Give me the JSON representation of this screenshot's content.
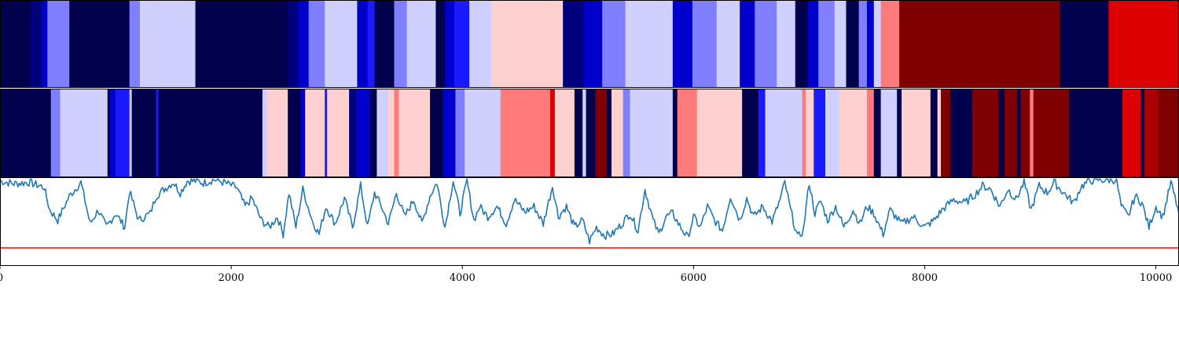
{
  "chart_data": {
    "type": "heatmap",
    "title": "",
    "xlabel": "",
    "ylabel": "",
    "xlim": [
      0,
      10200
    ],
    "grid": false,
    "legend": "none",
    "x_ticks": [
      0,
      2000,
      4000,
      6000,
      8000,
      10000
    ],
    "x_tick_labels": [
      "0",
      "2000",
      "4000",
      "6000",
      "8000",
      "10000"
    ],
    "colors": {
      "navy": "#00004c",
      "dark_blue": "#00007f",
      "blue": "#0000cc",
      "bright_blue": "#1a1aff",
      "medium_blue": "#7f7fff",
      "light_blue": "#d0d0ff",
      "light_pink": "#ffd0d0",
      "salmon": "#ff7a7a",
      "red": "#dd0000",
      "dark_red": "#7f0000",
      "crimson": "#aa0000",
      "line": "#1f77b4",
      "threshold": "#ff0000"
    },
    "strip_top": [
      [
        0,
        260,
        "navy"
      ],
      [
        260,
        360,
        "dark_blue"
      ],
      [
        360,
        410,
        "blue"
      ],
      [
        410,
        600,
        "medium_blue"
      ],
      [
        600,
        1120,
        "navy"
      ],
      [
        1120,
        1210,
        "medium_blue"
      ],
      [
        1210,
        1690,
        "light_blue"
      ],
      [
        1690,
        2490,
        "navy"
      ],
      [
        2490,
        2580,
        "dark_blue"
      ],
      [
        2580,
        2670,
        "blue"
      ],
      [
        2670,
        2810,
        "medium_blue"
      ],
      [
        2810,
        3090,
        "light_blue"
      ],
      [
        3090,
        3180,
        "blue"
      ],
      [
        3180,
        3240,
        "bright_blue"
      ],
      [
        3240,
        3410,
        "navy"
      ],
      [
        3410,
        3520,
        "medium_blue"
      ],
      [
        3520,
        3770,
        "light_blue"
      ],
      [
        3770,
        3850,
        "navy"
      ],
      [
        3850,
        3930,
        "blue"
      ],
      [
        3930,
        4060,
        "bright_blue"
      ],
      [
        4060,
        4250,
        "light_blue"
      ],
      [
        4250,
        4870,
        "light_pink"
      ],
      [
        4870,
        5050,
        "dark_blue"
      ],
      [
        5050,
        5210,
        "blue"
      ],
      [
        5210,
        5410,
        "medium_blue"
      ],
      [
        5410,
        5820,
        "light_blue"
      ],
      [
        5820,
        5990,
        "blue"
      ],
      [
        5990,
        6200,
        "medium_blue"
      ],
      [
        6200,
        6400,
        "light_blue"
      ],
      [
        6400,
        6530,
        "blue"
      ],
      [
        6530,
        6720,
        "medium_blue"
      ],
      [
        6720,
        6880,
        "light_blue"
      ],
      [
        6880,
        6990,
        "navy"
      ],
      [
        6990,
        7080,
        "blue"
      ],
      [
        7080,
        7220,
        "medium_blue"
      ],
      [
        7220,
        7320,
        "light_blue"
      ],
      [
        7320,
        7430,
        "navy"
      ],
      [
        7430,
        7500,
        "medium_blue"
      ],
      [
        7500,
        7560,
        "blue"
      ],
      [
        7560,
        7620,
        "light_blue"
      ],
      [
        7620,
        7780,
        "salmon"
      ],
      [
        7780,
        9170,
        "dark_red"
      ],
      [
        9170,
        9590,
        "navy"
      ],
      [
        9590,
        10200,
        "red"
      ]
    ],
    "strip_bottom": [
      [
        0,
        440,
        "navy"
      ],
      [
        440,
        520,
        "medium_blue"
      ],
      [
        520,
        930,
        "light_blue"
      ],
      [
        930,
        950,
        "navy"
      ],
      [
        950,
        1000,
        "blue"
      ],
      [
        1000,
        1120,
        "bright_blue"
      ],
      [
        1120,
        1140,
        "light_blue"
      ],
      [
        1140,
        1170,
        "navy"
      ],
      [
        1170,
        1350,
        "navy"
      ],
      [
        1350,
        1370,
        "bright_blue"
      ],
      [
        1370,
        2270,
        "navy"
      ],
      [
        2270,
        2310,
        "light_blue"
      ],
      [
        2310,
        2330,
        "light_pink"
      ],
      [
        2330,
        2490,
        "light_pink"
      ],
      [
        2490,
        2600,
        "navy"
      ],
      [
        2600,
        2640,
        "blue"
      ],
      [
        2640,
        2810,
        "light_pink"
      ],
      [
        2810,
        2830,
        "bright_blue"
      ],
      [
        2830,
        3020,
        "light_pink"
      ],
      [
        3020,
        3080,
        "dark_blue"
      ],
      [
        3080,
        3200,
        "blue"
      ],
      [
        3200,
        3260,
        "navy"
      ],
      [
        3260,
        3360,
        "light_blue"
      ],
      [
        3360,
        3410,
        "light_pink"
      ],
      [
        3410,
        3450,
        "salmon"
      ],
      [
        3450,
        3570,
        "light_pink"
      ],
      [
        3570,
        3720,
        "light_pink"
      ],
      [
        3720,
        3830,
        "navy"
      ],
      [
        3830,
        3940,
        "blue"
      ],
      [
        3940,
        4020,
        "medium_blue"
      ],
      [
        4020,
        4330,
        "light_blue"
      ],
      [
        4330,
        4760,
        "salmon"
      ],
      [
        4760,
        4800,
        "red"
      ],
      [
        4800,
        4970,
        "light_pink"
      ],
      [
        4970,
        5040,
        "navy"
      ],
      [
        5040,
        5070,
        "light_blue"
      ],
      [
        5070,
        5150,
        "navy"
      ],
      [
        5150,
        5250,
        "dark_red"
      ],
      [
        5250,
        5290,
        "navy"
      ],
      [
        5290,
        5390,
        "light_pink"
      ],
      [
        5390,
        5450,
        "medium_blue"
      ],
      [
        5450,
        5820,
        "light_blue"
      ],
      [
        5820,
        5860,
        "navy"
      ],
      [
        5860,
        6030,
        "salmon"
      ],
      [
        6030,
        6160,
        "light_pink"
      ],
      [
        6160,
        6420,
        "light_pink"
      ],
      [
        6420,
        6560,
        "navy"
      ],
      [
        6560,
        6620,
        "bright_blue"
      ],
      [
        6620,
        6800,
        "light_blue"
      ],
      [
        6800,
        6940,
        "light_blue"
      ],
      [
        6940,
        6970,
        "salmon"
      ],
      [
        6970,
        7040,
        "light_pink"
      ],
      [
        7040,
        7140,
        "bright_blue"
      ],
      [
        7140,
        7260,
        "light_blue"
      ],
      [
        7260,
        7400,
        "light_pink"
      ],
      [
        7400,
        7500,
        "light_pink"
      ],
      [
        7500,
        7560,
        "salmon"
      ],
      [
        7560,
        7620,
        "navy"
      ],
      [
        7620,
        7760,
        "light_blue"
      ],
      [
        7760,
        7800,
        "navy"
      ],
      [
        7800,
        7920,
        "light_pink"
      ],
      [
        7920,
        8050,
        "light_pink"
      ],
      [
        8050,
        8110,
        "navy"
      ],
      [
        8110,
        8140,
        "light_pink"
      ],
      [
        8140,
        8220,
        "dark_red"
      ],
      [
        8220,
        8410,
        "navy"
      ],
      [
        8410,
        8640,
        "dark_red"
      ],
      [
        8640,
        8690,
        "navy"
      ],
      [
        8690,
        8800,
        "dark_red"
      ],
      [
        8800,
        8830,
        "navy"
      ],
      [
        8830,
        8910,
        "dark_red"
      ],
      [
        8910,
        8940,
        "salmon"
      ],
      [
        8940,
        9250,
        "dark_red"
      ],
      [
        9250,
        9710,
        "navy"
      ],
      [
        9710,
        9740,
        "red"
      ],
      [
        9740,
        9870,
        "red"
      ],
      [
        9870,
        9900,
        "navy"
      ],
      [
        9900,
        10020,
        "crimson"
      ],
      [
        10020,
        10200,
        "dark_red"
      ]
    ],
    "series": [
      {
        "x": [
          0,
          120,
          250,
          380,
          430,
          500,
          600,
          700,
          780,
          850,
          920,
          1000,
          1080,
          1120,
          1200,
          1300,
          1350,
          1420,
          1500,
          1560,
          1620,
          1700,
          1760,
          1850,
          1950,
          2050,
          2120,
          2180,
          2260,
          2330,
          2400,
          2450,
          2500,
          2560,
          2620,
          2700,
          2760,
          2820,
          2900,
          2980,
          3050,
          3120,
          3180,
          3240,
          3300,
          3360,
          3430,
          3500,
          3580,
          3650,
          3720,
          3780,
          3850,
          3920,
          3980,
          4040,
          4100,
          4150,
          4220,
          4300,
          4380,
          4450,
          4540,
          4620,
          4700,
          4780,
          4830,
          4900,
          4970,
          5040,
          5100,
          5160,
          5230,
          5300,
          5380,
          5450,
          5520,
          5580,
          5650,
          5700,
          5760,
          5820,
          5880,
          5950,
          6000,
          6060,
          6120,
          6180,
          6250,
          6320,
          6400,
          6460,
          6520,
          6600,
          6680,
          6750,
          6790,
          6840,
          6900,
          6950,
          7000,
          7050,
          7100,
          7160,
          7230,
          7300,
          7380,
          7440,
          7500,
          7560,
          7640,
          7700,
          7800,
          7900,
          8000,
          8080,
          8150,
          8250,
          8350,
          8450,
          8500,
          8570,
          8650,
          8720,
          8790,
          8860,
          8920,
          8990,
          9060,
          9120,
          9200,
          9290,
          9350,
          9420,
          9500,
          9560,
          9620,
          9660,
          9700,
          9760,
          9820,
          9880,
          9940,
          10000,
          10060,
          10130,
          10200
        ],
        "values": [
          0.97,
          0.93,
          0.95,
          0.88,
          0.55,
          0.4,
          0.75,
          0.95,
          0.35,
          0.55,
          0.3,
          0.5,
          0.3,
          0.82,
          0.4,
          0.5,
          0.75,
          0.85,
          0.95,
          0.8,
          0.97,
          0.97,
          0.94,
          0.99,
          0.94,
          0.87,
          0.6,
          0.72,
          0.4,
          0.3,
          0.45,
          0.2,
          0.8,
          0.3,
          0.85,
          0.4,
          0.2,
          0.6,
          0.35,
          0.72,
          0.3,
          0.9,
          0.3,
          0.8,
          0.6,
          0.35,
          0.8,
          0.45,
          0.7,
          0.35,
          0.75,
          0.95,
          0.3,
          0.98,
          0.5,
          0.97,
          0.4,
          0.6,
          0.45,
          0.6,
          0.35,
          0.7,
          0.52,
          0.6,
          0.35,
          0.9,
          0.45,
          0.6,
          0.3,
          0.4,
          0.1,
          0.3,
          0.18,
          0.2,
          0.35,
          0.5,
          0.25,
          0.85,
          0.4,
          0.2,
          0.45,
          0.5,
          0.32,
          0.15,
          0.45,
          0.3,
          0.6,
          0.4,
          0.25,
          0.75,
          0.4,
          0.72,
          0.45,
          0.6,
          0.38,
          0.7,
          0.95,
          0.55,
          0.15,
          0.25,
          0.95,
          0.5,
          0.68,
          0.4,
          0.6,
          0.3,
          0.55,
          0.35,
          0.6,
          0.5,
          0.2,
          0.55,
          0.35,
          0.45,
          0.3,
          0.4,
          0.55,
          0.7,
          0.65,
          0.8,
          0.9,
          0.85,
          0.6,
          0.85,
          0.7,
          0.95,
          0.55,
          0.9,
          0.8,
          0.95,
          0.8,
          0.65,
          0.88,
          0.97,
          0.99,
          0.98,
          0.99,
          0.98,
          0.6,
          0.45,
          0.75,
          0.65,
          0.3,
          0.6,
          0.45,
          0.95,
          0.5
        ]
      }
    ],
    "ylim": [
      -0.25,
      1.0
    ],
    "threshold": 0.0
  }
}
